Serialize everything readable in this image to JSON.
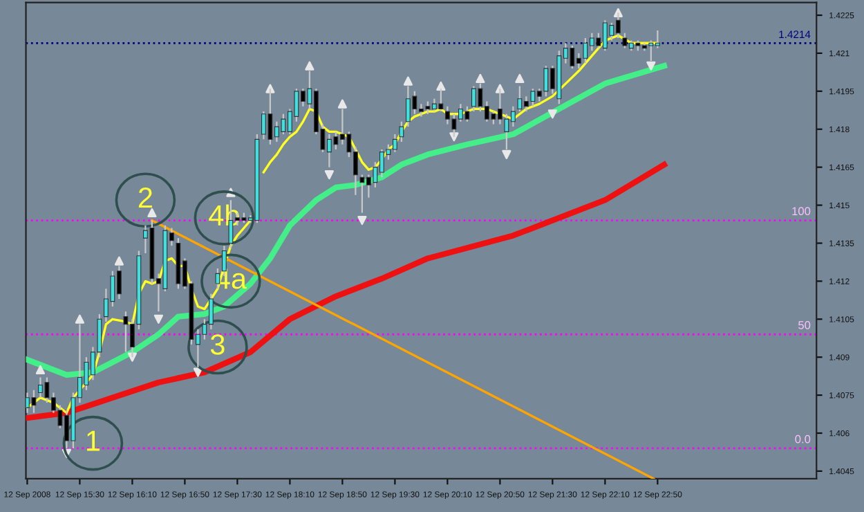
{
  "chart_data": {
    "type": "candlestick",
    "x": [
      "2008-09-12T14:50",
      "2008-09-12T14:55",
      "2008-09-12T15:00",
      "2008-09-12T15:05",
      "2008-09-12T15:10",
      "2008-09-12T15:15",
      "2008-09-12T15:20",
      "2008-09-12T15:25",
      "2008-09-12T15:30",
      "2008-09-12T15:35",
      "2008-09-12T15:40",
      "2008-09-12T15:45",
      "2008-09-12T15:50",
      "2008-09-12T15:55",
      "2008-09-12T16:00",
      "2008-09-12T16:05",
      "2008-09-12T16:10",
      "2008-09-12T16:15",
      "2008-09-12T16:20",
      "2008-09-12T16:25",
      "2008-09-12T16:30",
      "2008-09-12T16:35",
      "2008-09-12T16:40",
      "2008-09-12T16:45",
      "2008-09-12T16:50",
      "2008-09-12T16:55",
      "2008-09-12T17:00",
      "2008-09-12T17:05",
      "2008-09-12T17:10",
      "2008-09-12T17:15",
      "2008-09-12T17:20",
      "2008-09-12T17:25",
      "2008-09-12T17:30",
      "2008-09-12T17:35",
      "2008-09-12T17:40",
      "2008-09-12T17:45",
      "2008-09-12T17:50",
      "2008-09-12T17:55",
      "2008-09-12T18:00",
      "2008-09-12T18:05",
      "2008-09-12T18:10",
      "2008-09-12T18:15",
      "2008-09-12T18:20",
      "2008-09-12T18:25",
      "2008-09-12T18:30",
      "2008-09-12T18:35",
      "2008-09-12T18:40",
      "2008-09-12T18:45",
      "2008-09-12T18:50",
      "2008-09-12T18:55",
      "2008-09-12T19:00",
      "2008-09-12T19:05",
      "2008-09-12T19:10",
      "2008-09-12T19:15",
      "2008-09-12T19:20",
      "2008-09-12T19:25",
      "2008-09-12T19:30",
      "2008-09-12T19:35",
      "2008-09-12T19:40",
      "2008-09-12T19:45",
      "2008-09-12T19:50",
      "2008-09-12T19:55",
      "2008-09-12T20:00",
      "2008-09-12T20:05",
      "2008-09-12T20:10",
      "2008-09-12T20:15",
      "2008-09-12T20:20",
      "2008-09-12T20:25",
      "2008-09-12T20:30",
      "2008-09-12T20:35",
      "2008-09-12T20:40",
      "2008-09-12T20:45",
      "2008-09-12T20:50",
      "2008-09-12T20:55",
      "2008-09-12T21:00",
      "2008-09-12T21:05",
      "2008-09-12T21:10",
      "2008-09-12T21:15",
      "2008-09-12T21:20",
      "2008-09-12T21:25",
      "2008-09-12T21:30",
      "2008-09-12T21:35",
      "2008-09-12T21:40",
      "2008-09-12T21:45",
      "2008-09-12T21:50",
      "2008-09-12T21:55",
      "2008-09-12T22:00",
      "2008-09-12T22:05",
      "2008-09-12T22:10",
      "2008-09-12T22:15",
      "2008-09-12T22:20",
      "2008-09-12T22:25",
      "2008-09-12T22:30",
      "2008-09-12T22:35",
      "2008-09-12T22:40",
      "2008-09-12T22:45",
      "2008-09-12T22:50"
    ],
    "ohlc": [
      [
        1.407,
        1.4076,
        1.4068,
        1.4074
      ],
      [
        1.4074,
        1.4077,
        1.4068,
        1.4071
      ],
      [
        1.4076,
        1.4082,
        1.4074,
        1.4079
      ],
      [
        1.408,
        1.4082,
        1.4072,
        1.4074
      ],
      [
        1.4074,
        1.4076,
        1.4068,
        1.4069
      ],
      [
        1.4069,
        1.4071,
        1.4062,
        1.4063
      ],
      [
        1.4067,
        1.4069,
        1.4054,
        1.4057
      ],
      [
        1.4057,
        1.4076,
        1.4054,
        1.4074
      ],
      [
        1.4074,
        1.4103,
        1.4072,
        1.4082
      ],
      [
        1.4079,
        1.409,
        1.4077,
        1.4088
      ],
      [
        1.4083,
        1.4094,
        1.4081,
        1.4092
      ],
      [
        1.4092,
        1.4107,
        1.409,
        1.4105
      ],
      [
        1.4106,
        1.4117,
        1.4104,
        1.4113
      ],
      [
        1.4112,
        1.4124,
        1.411,
        1.4122
      ],
      [
        1.4124,
        1.4126,
        1.4113,
        1.4115
      ],
      [
        1.4106,
        1.4108,
        1.4092,
        1.4103
      ],
      [
        1.4103,
        1.4105,
        1.409,
        1.4094
      ],
      [
        1.4103,
        1.4132,
        1.4101,
        1.413
      ],
      [
        1.4137,
        1.4142,
        1.4131,
        1.414
      ],
      [
        1.4141,
        1.4144,
        1.4119,
        1.4121
      ],
      [
        1.4121,
        1.4123,
        1.4108,
        1.4119
      ],
      [
        1.4117,
        1.4142,
        1.4116,
        1.414
      ],
      [
        1.4139,
        1.4141,
        1.4134,
        1.4136
      ],
      [
        1.4135,
        1.4137,
        1.4117,
        1.4119
      ],
      [
        1.4128,
        1.4129,
        1.4117,
        1.4118
      ],
      [
        1.4119,
        1.412,
        1.4095,
        1.4097
      ],
      [
        1.4095,
        1.4101,
        1.4086,
        1.4099
      ],
      [
        1.4099,
        1.4105,
        1.4097,
        1.4103
      ],
      [
        1.4103,
        1.4115,
        1.4101,
        1.4113
      ],
      [
        1.4119,
        1.4125,
        1.4117,
        1.4123
      ],
      [
        1.4124,
        1.4134,
        1.4122,
        1.4132
      ],
      [
        1.4135,
        1.4152,
        1.4133,
        1.4144
      ],
      [
        1.4145,
        1.4147,
        1.4142,
        1.4144
      ],
      [
        1.4145,
        1.4147,
        1.4143,
        1.4144
      ],
      [
        1.4144,
        1.4146,
        1.4143,
        1.4145
      ],
      [
        1.4144,
        1.4178,
        1.4143,
        1.4176
      ],
      [
        1.4178,
        1.4187,
        1.4176,
        1.4186
      ],
      [
        1.4186,
        1.4196,
        1.4174,
        1.4176
      ],
      [
        1.4177,
        1.4183,
        1.4175,
        1.4181
      ],
      [
        1.4179,
        1.4186,
        1.4178,
        1.4184
      ],
      [
        1.4179,
        1.4188,
        1.4178,
        1.4187
      ],
      [
        1.4185,
        1.4196,
        1.4183,
        1.4195
      ],
      [
        1.4195,
        1.4196,
        1.4189,
        1.4191
      ],
      [
        1.419,
        1.4203,
        1.4188,
        1.4196
      ],
      [
        1.4195,
        1.4196,
        1.4178,
        1.4179
      ],
      [
        1.418,
        1.4182,
        1.4171,
        1.4172
      ],
      [
        1.4171,
        1.4178,
        1.4165,
        1.4176
      ],
      [
        1.4177,
        1.4179,
        1.4172,
        1.4174
      ],
      [
        1.4178,
        1.4188,
        1.4174,
        1.4176
      ],
      [
        1.4178,
        1.4179,
        1.4169,
        1.4171
      ],
      [
        1.4171,
        1.4173,
        1.4154,
        1.4162
      ],
      [
        1.4161,
        1.4162,
        1.4147,
        1.4159
      ],
      [
        1.4161,
        1.4162,
        1.4153,
        1.4158
      ],
      [
        1.4159,
        1.4167,
        1.4157,
        1.4165
      ],
      [
        1.4163,
        1.4172,
        1.4161,
        1.4171
      ],
      [
        1.417,
        1.4174,
        1.4168,
        1.4172
      ],
      [
        1.4172,
        1.4178,
        1.4171,
        1.4176
      ],
      [
        1.4177,
        1.4183,
        1.4175,
        1.4181
      ],
      [
        1.4183,
        1.4197,
        1.4181,
        1.4192
      ],
      [
        1.4193,
        1.4195,
        1.4186,
        1.4188
      ],
      [
        1.4188,
        1.419,
        1.4185,
        1.4187
      ],
      [
        1.4189,
        1.4191,
        1.4186,
        1.4188
      ],
      [
        1.4188,
        1.4192,
        1.4187,
        1.419
      ],
      [
        1.419,
        1.4196,
        1.4187,
        1.4188
      ],
      [
        1.4187,
        1.4189,
        1.4182,
        1.4184
      ],
      [
        1.4184,
        1.4186,
        1.4177,
        1.418
      ],
      [
        1.4184,
        1.419,
        1.4183,
        1.4188
      ],
      [
        1.4187,
        1.4189,
        1.4183,
        1.4184
      ],
      [
        1.4189,
        1.4197,
        1.4187,
        1.4196
      ],
      [
        1.4196,
        1.4198,
        1.4187,
        1.4189
      ],
      [
        1.4189,
        1.4191,
        1.4183,
        1.4184
      ],
      [
        1.4186,
        1.4187,
        1.4182,
        1.4184
      ],
      [
        1.4188,
        1.4196,
        1.4182,
        1.4184
      ],
      [
        1.4179,
        1.4186,
        1.4172,
        1.4184
      ],
      [
        1.4183,
        1.4189,
        1.4181,
        1.4187
      ],
      [
        1.4188,
        1.4197,
        1.4187,
        1.4192
      ],
      [
        1.4191,
        1.4193,
        1.4187,
        1.4189
      ],
      [
        1.4191,
        1.4196,
        1.4189,
        1.4195
      ],
      [
        1.4195,
        1.4196,
        1.4191,
        1.4193
      ],
      [
        1.4195,
        1.4205,
        1.4193,
        1.4204
      ],
      [
        1.4204,
        1.4205,
        1.4194,
        1.4196
      ],
      [
        1.4192,
        1.4211,
        1.419,
        1.4209
      ],
      [
        1.4208,
        1.4214,
        1.4206,
        1.4212
      ],
      [
        1.4212,
        1.4213,
        1.4204,
        1.4205
      ],
      [
        1.4208,
        1.421,
        1.4204,
        1.4206
      ],
      [
        1.4208,
        1.4216,
        1.4206,
        1.4214
      ],
      [
        1.4213,
        1.4218,
        1.4211,
        1.4216
      ],
      [
        1.4216,
        1.4218,
        1.4212,
        1.4213
      ],
      [
        1.4212,
        1.4223,
        1.4211,
        1.4222
      ],
      [
        1.4217,
        1.4222,
        1.4215,
        1.4221
      ],
      [
        1.4223,
        1.4226,
        1.4216,
        1.4218
      ],
      [
        1.4216,
        1.4218,
        1.4212,
        1.4213
      ],
      [
        1.4212,
        1.4215,
        1.4211,
        1.4214
      ],
      [
        1.4214,
        1.4215,
        1.4211,
        1.4213
      ],
      [
        1.4213,
        1.4214,
        1.4211,
        1.4212
      ],
      [
        1.4213,
        1.4215,
        1.4207,
        1.4214
      ],
      [
        1.4213,
        1.4219,
        1.4212,
        1.4214
      ]
    ],
    "colors": [
      "#3ee0e0",
      "#000000",
      "#3ee0e0",
      "#000000",
      "#000000",
      "#000000",
      "#000000",
      "#3ee0e0",
      "#3ee0e0",
      "#3ee0e0",
      "#3ee0e0",
      "#3ee0e0",
      "#3ee0e0",
      "#3ee0e0",
      "#000000",
      "#000000",
      "#000000",
      "#3ee0e0",
      "#3ee0e0",
      "#000000",
      "#000000",
      "#3ee0e0",
      "#000000",
      "#000000",
      "#000000",
      "#000000",
      "#3ee0e0",
      "#3ee0e0",
      "#3ee0e0",
      "#3ee0e0",
      "#3ee0e0",
      "#3ee0e0",
      "#000000",
      "#000000",
      "#3ee0e0",
      "#3ee0e0",
      "#3ee0e0",
      "#000000",
      "#3ee0e0",
      "#3ee0e0",
      "#3ee0e0",
      "#3ee0e0",
      "#000000",
      "#3ee0e0",
      "#000000",
      "#000000",
      "#3ee0e0",
      "#000000",
      "#000000",
      "#000000",
      "#000000",
      "#000000",
      "#000000",
      "#3ee0e0",
      "#3ee0e0",
      "#3ee0e0",
      "#3ee0e0",
      "#3ee0e0",
      "#3ee0e0",
      "#000000",
      "#000000",
      "#000000",
      "#3ee0e0",
      "#000000",
      "#000000",
      "#000000",
      "#3ee0e0",
      "#000000",
      "#3ee0e0",
      "#000000",
      "#000000",
      "#000000",
      "#000000",
      "#3ee0e0",
      "#3ee0e0",
      "#3ee0e0",
      "#000000",
      "#3ee0e0",
      "#000000",
      "#3ee0e0",
      "#000000",
      "#3ee0e0",
      "#3ee0e0",
      "#000000",
      "#000000",
      "#3ee0e0",
      "#3ee0e0",
      "#000000",
      "#3ee0e0",
      "#3ee0e0",
      "#000000",
      "#000000",
      "#3ee0e0",
      "#000000",
      "#000000",
      "#3ee0e0",
      "#3ee0e0"
    ],
    "series": [
      {
        "type": "line",
        "color": "#ee1111",
        "x": [
          "2008-09-12T14:50",
          "2008-09-12T15:20",
          "2008-09-12T15:55",
          "2008-09-12T16:30",
          "2008-09-12T17:05",
          "2008-09-12T17:40",
          "2008-09-12T18:10",
          "2008-09-12T18:45",
          "2008-09-12T19:20",
          "2008-09-12T19:55",
          "2008-09-12T21:00",
          "2008-09-12T22:10",
          "2008-09-12T22:55"
        ],
        "values": [
          1.4066,
          1.4068,
          1.4074,
          1.408,
          1.4084,
          1.4092,
          1.4105,
          1.4114,
          1.4121,
          1.4129,
          1.4138,
          1.4152,
          1.4166
        ]
      },
      {
        "type": "line",
        "color": "#44ee88",
        "x": [
          "2008-09-12T14:50",
          "2008-09-12T15:20",
          "2008-09-12T15:40",
          "2008-09-12T15:55",
          "2008-09-12T16:10",
          "2008-09-12T16:30",
          "2008-09-12T16:45",
          "2008-09-12T17:05",
          "2008-09-12T17:20",
          "2008-09-12T17:40",
          "2008-09-12T17:55",
          "2008-09-12T18:10",
          "2008-09-12T18:30",
          "2008-09-12T18:45",
          "2008-09-12T19:00",
          "2008-09-12T19:20",
          "2008-09-12T19:35",
          "2008-09-12T19:55",
          "2008-09-12T20:25",
          "2008-09-12T21:00",
          "2008-09-12T21:35",
          "2008-09-12T22:10",
          "2008-09-12T22:55"
        ],
        "values": [
          1.4089,
          1.4083,
          1.4084,
          1.4088,
          1.4092,
          1.4099,
          1.4106,
          1.4107,
          1.411,
          1.4119,
          1.4129,
          1.4142,
          1.4152,
          1.4157,
          1.4158,
          1.4161,
          1.4166,
          1.417,
          1.4174,
          1.4178,
          1.4188,
          1.4198,
          1.4205
        ]
      },
      {
        "type": "line",
        "color": "#ffff22",
        "x": [
          "2008-09-12T14:50",
          "2008-09-12T15:00",
          "2008-09-12T15:10",
          "2008-09-12T15:20",
          "2008-09-12T15:25",
          "2008-09-12T15:30",
          "2008-09-12T15:40",
          "2008-09-12T15:45",
          "2008-09-12T15:50",
          "2008-09-12T15:55",
          "2008-09-12T16:05",
          "2008-09-12T16:10",
          "2008-09-12T16:15",
          "2008-09-12T16:20",
          "2008-09-12T16:25",
          "2008-09-12T16:30",
          "2008-09-12T16:35",
          "2008-09-12T16:40",
          "2008-09-12T16:45",
          "2008-09-12T16:50",
          "2008-09-12T16:55",
          "2008-09-12T17:00",
          "2008-09-12T17:05",
          "2008-09-12T17:10",
          "2008-09-12T17:15",
          "2008-09-12T17:20",
          "2008-09-12T17:25",
          "2008-09-12T17:30",
          "2008-09-12T17:35",
          "2008-09-12T17:40",
          "2008-09-12T17:45",
          "2008-09-12T17:50",
          "2008-09-12T17:55",
          "2008-09-12T18:00",
          "2008-09-12T18:05",
          "2008-09-12T18:10",
          "2008-09-12T18:15",
          "2008-09-12T18:20",
          "2008-09-12T18:25",
          "2008-09-12T18:30",
          "2008-09-12T18:35",
          "2008-09-12T18:40",
          "2008-09-12T18:45",
          "2008-09-12T18:50",
          "2008-09-12T18:55",
          "2008-09-12T19:00",
          "2008-09-12T19:05",
          "2008-09-12T19:10",
          "2008-09-12T19:15",
          "2008-09-12T19:20",
          "2008-09-12T19:25",
          "2008-09-12T19:30",
          "2008-09-12T19:35",
          "2008-09-12T19:40",
          "2008-09-12T19:45",
          "2008-09-12T19:50",
          "2008-09-12T19:55",
          "2008-09-12T20:00",
          "2008-09-12T20:05",
          "2008-09-12T20:10",
          "2008-09-12T20:20",
          "2008-09-12T20:30",
          "2008-09-12T20:40",
          "2008-09-12T20:50",
          "2008-09-12T21:00",
          "2008-09-12T21:10",
          "2008-09-12T21:20",
          "2008-09-12T21:30",
          "2008-09-12T21:40",
          "2008-09-12T21:50",
          "2008-09-12T22:00",
          "2008-09-12T22:10",
          "2008-09-12T22:20",
          "2008-09-12T22:30",
          "2008-09-12T22:40",
          "2008-09-12T22:50"
        ],
        "values": [
          1.407,
          1.4074,
          1.4072,
          1.4068,
          1.4074,
          1.4077,
          1.4083,
          1.4092,
          1.4103,
          1.4105,
          1.4104,
          1.4103,
          1.4115,
          1.412,
          1.4119,
          1.412,
          1.4128,
          1.4129,
          1.4126,
          1.4126,
          1.4117,
          1.411,
          1.4109,
          1.4113,
          1.4117,
          1.4126,
          1.4134,
          1.4138,
          1.4141,
          1.4144,
          null,
          1.4163,
          1.4167,
          1.417,
          1.4174,
          1.4177,
          1.4179,
          1.4183,
          1.4188,
          1.4187,
          1.4181,
          1.4179,
          1.4179,
          1.4178,
          1.4177,
          1.4172,
          1.4167,
          1.4164,
          1.4165,
          1.4168,
          1.4172,
          1.4174,
          1.4179,
          1.4183,
          1.4185,
          1.4186,
          1.4187,
          1.4187,
          1.4188,
          1.4186,
          1.4186,
          1.4188,
          1.4188,
          1.4186,
          1.4184,
          1.4188,
          1.419,
          1.4193,
          1.4198,
          1.4203,
          1.4209,
          1.4215,
          1.4217,
          1.4214,
          1.4214,
          1.4214
        ]
      },
      {
        "type": "line",
        "color": "#ffa500",
        "x": [
          "2008-09-12T16:25",
          "2008-09-12T22:47"
        ],
        "values": [
          1.4144,
          1.4042
        ]
      },
      {
        "type": "scatter",
        "color": "#e8e8e8",
        "marker": "triangle",
        "x": [
          "2008-09-12T15:00",
          "2008-09-12T15:30",
          "2008-09-12T16:00",
          "2008-09-12T16:25",
          "2008-09-12T17:25",
          "2008-09-12T17:55",
          "2008-09-12T18:25",
          "2008-09-12T18:50",
          "2008-09-12T19:40",
          "2008-09-12T20:05",
          "2008-09-12T20:35",
          "2008-09-12T20:50",
          "2008-09-12T21:05",
          "2008-09-12T22:20"
        ],
        "values": [
          1.4085,
          1.4105,
          1.4128,
          1.4147,
          1.4155,
          1.4196,
          1.4205,
          1.419,
          1.4199,
          1.4197,
          1.42,
          1.4196,
          1.42,
          1.4226
        ]
      },
      {
        "type": "scatter",
        "color": "#e8e8e8",
        "marker": "triangle_down",
        "x": [
          "2008-09-12T15:20",
          "2008-09-12T16:10",
          "2008-09-12T16:30",
          "2008-09-12T17:00",
          "2008-09-12T18:40",
          "2008-09-12T19:05",
          "2008-09-12T20:15",
          "2008-09-12T20:55",
          "2008-09-12T21:30",
          "2008-09-12T22:45"
        ],
        "values": [
          1.4052,
          1.409,
          1.4105,
          1.4084,
          1.4162,
          1.4144,
          1.4177,
          1.417,
          1.4186,
          1.4205
        ]
      }
    ],
    "xlim": [
      "2008-09-12T14:49",
      "2008-09-13T00:51"
    ],
    "xticks": [
      {
        "value": "2008-09-12T14:50",
        "label": "12 Sep 2008"
      },
      {
        "value": "2008-09-12T15:30",
        "label": "12 Sep 15:30"
      },
      {
        "value": "2008-09-12T16:10",
        "label": "12 Sep 16:10"
      },
      {
        "value": "2008-09-12T16:50",
        "label": "12 Sep 16:50"
      },
      {
        "value": "2008-09-12T17:30",
        "label": "12 Sep 17:30"
      },
      {
        "value": "2008-09-12T18:10",
        "label": "12 Sep 18:10"
      },
      {
        "value": "2008-09-12T18:50",
        "label": "12 Sep 18:50"
      },
      {
        "value": "2008-09-12T19:30",
        "label": "12 Sep 19:30"
      },
      {
        "value": "2008-09-12T20:10",
        "label": "12 Sep 20:10"
      },
      {
        "value": "2008-09-12T20:50",
        "label": "12 Sep 20:50"
      },
      {
        "value": "2008-09-12T21:30",
        "label": "12 Sep 21:30"
      },
      {
        "value": "2008-09-12T22:10",
        "label": "12 Sep 22:10"
      },
      {
        "value": "2008-09-12T22:50",
        "label": "12 Sep 22:50"
      }
    ],
    "ylim": [
      1.4042,
      1.423
    ],
    "yticks": [
      1.4045,
      1.406,
      1.4075,
      1.409,
      1.4105,
      1.412,
      1.4135,
      1.415,
      1.4165,
      1.418,
      1.4195,
      1.421,
      1.4225
    ],
    "ref_lines": [
      {
        "axis": "y",
        "value": 1.4144,
        "color": "#ff00ff",
        "line_style": "dotted"
      },
      {
        "axis": "y",
        "value": 1.4099,
        "color": "#ff00ff",
        "line_style": "dotted"
      },
      {
        "axis": "y",
        "value": 1.4054,
        "color": "#ff00ff",
        "line_style": "dotted"
      },
      {
        "axis": "y",
        "value": 1.4214,
        "label": "1.4214",
        "color": "#000080",
        "line_style": "dotted"
      }
    ],
    "annotations": [
      {
        "text": "1",
        "x": "2008-09-12T15:40",
        "y": 1.4056
      },
      {
        "text": "2",
        "x": "2008-09-12T16:20",
        "y": 1.4152
      },
      {
        "text": "3",
        "x": "2008-09-12T17:15",
        "y": 1.4094
      },
      {
        "text": "4a",
        "x": "2008-09-12T17:25",
        "y": 1.412
      },
      {
        "text": "4b",
        "x": "2008-09-12T17:20",
        "y": 1.4145
      },
      {
        "text": "100",
        "x": "2008-09-13T00:51",
        "y": 1.4144
      },
      {
        "text": "50",
        "x": "2008-09-13T00:51",
        "y": 1.4099
      },
      {
        "text": "0.0",
        "x": "2008-09-13T00:51",
        "y": 1.4054
      }
    ]
  }
}
